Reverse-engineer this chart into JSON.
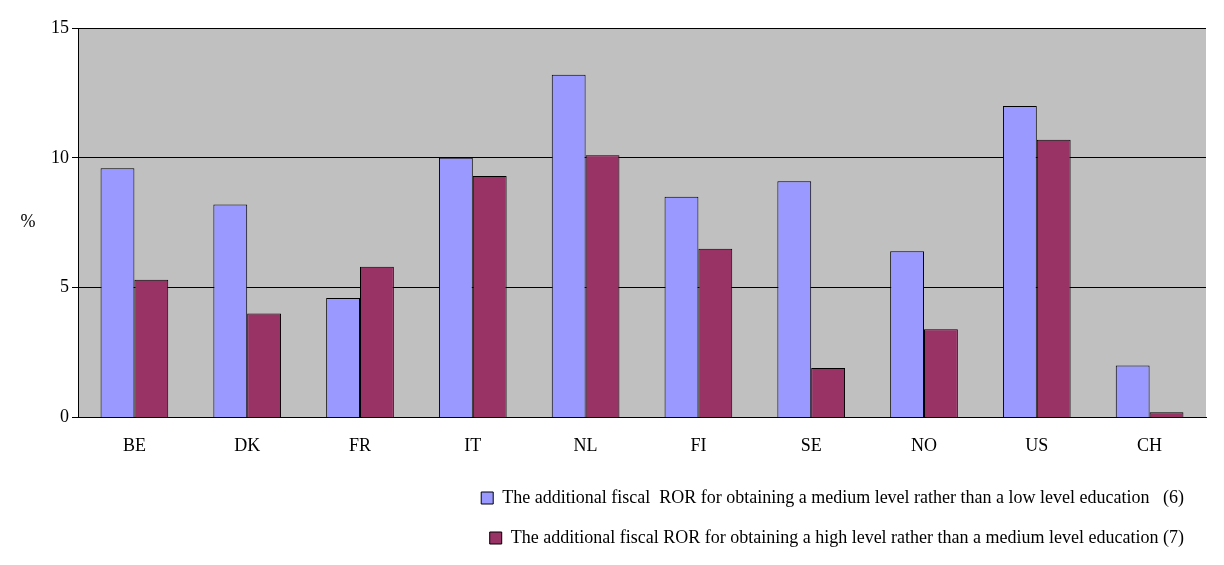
{
  "chart_data": {
    "type": "bar",
    "ylabel": "%",
    "categories": [
      "BE",
      "DK",
      "FR",
      "IT",
      "NL",
      "FI",
      "SE",
      "NO",
      "US",
      "CH"
    ],
    "series": [
      {
        "name": "The additional fiscal  ROR for obtaining a medium level rather than a low level education   (6)",
        "color": "#9999ff",
        "values": [
          9.6,
          8.2,
          4.6,
          10.0,
          13.2,
          8.5,
          9.1,
          6.4,
          12.0,
          2.0
        ]
      },
      {
        "name": "The additional fiscal ROR for obtaining a high level rather than a medium level education (7)",
        "color": "#993366",
        "values": [
          5.3,
          4.0,
          5.8,
          9.3,
          10.1,
          6.5,
          1.9,
          3.4,
          10.7,
          0.2
        ]
      }
    ],
    "ylim": [
      0,
      15
    ],
    "yticks": [
      0,
      5,
      10,
      15
    ],
    "grid": "y",
    "legend": "bottom"
  }
}
